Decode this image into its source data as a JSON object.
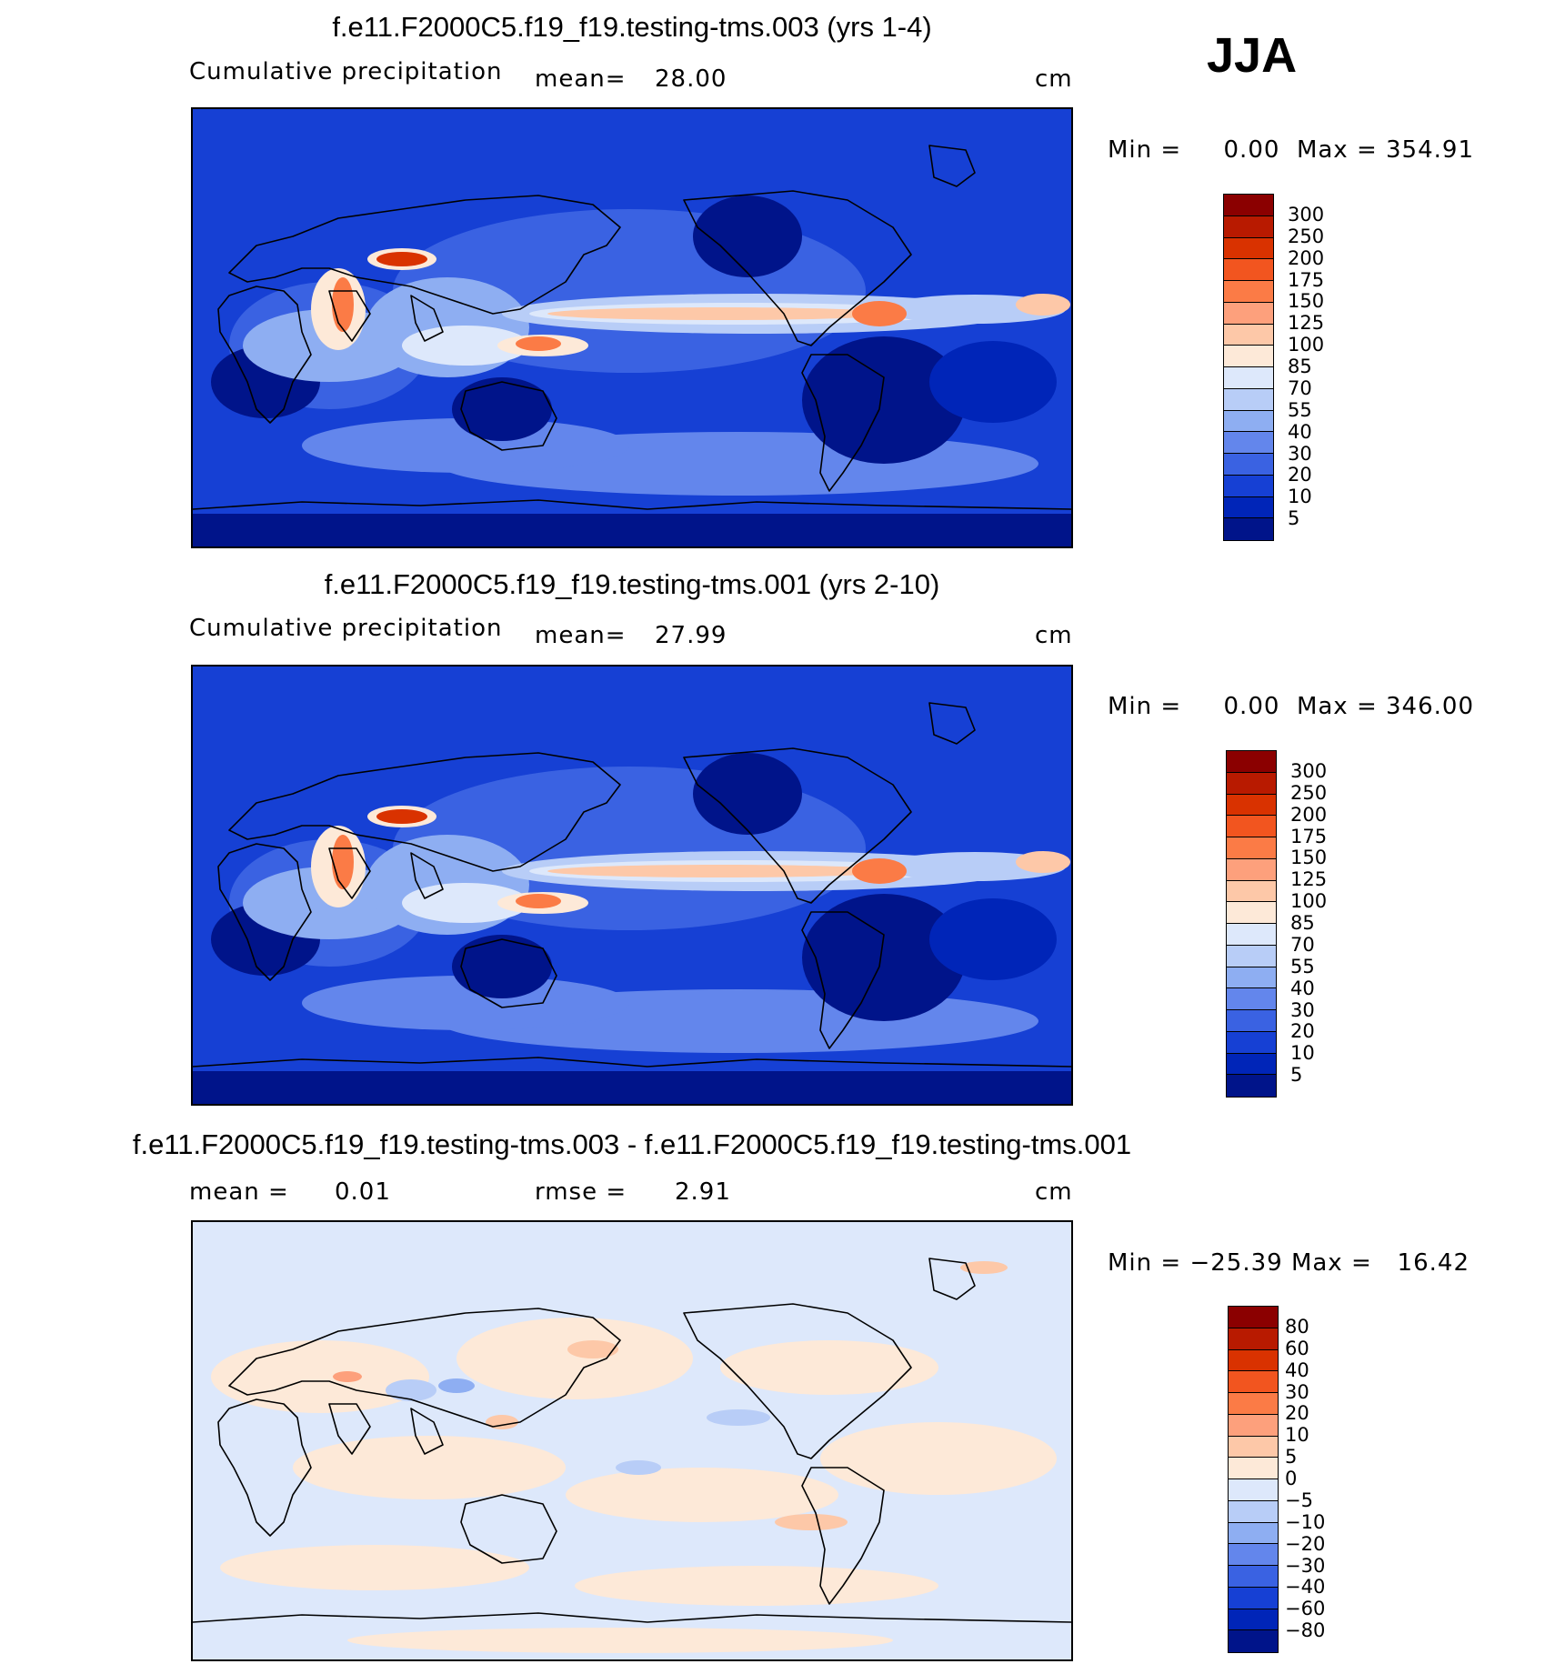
{
  "season": "JJA",
  "panels": [
    {
      "title": "f.e11.F2000C5.f19_f19.testing-tms.003 (yrs 1-4)",
      "left_label": "Cumulative precipitation",
      "stat_label": "mean=",
      "stat_value": "28.00",
      "units": "cm",
      "min_label": "Min =",
      "min_value": "0.00",
      "max_label": "Max =",
      "max_value": "354.91",
      "colorbar": {
        "labels": [
          "300",
          "250",
          "200",
          "175",
          "150",
          "125",
          "100",
          "85",
          "70",
          "55",
          "40",
          "30",
          "20",
          "10",
          "5"
        ],
        "colors": [
          "#8b0000",
          "#b81a00",
          "#d93200",
          "#f2551f",
          "#fb7b46",
          "#fda07c",
          "#fdc8a8",
          "#fde9d8",
          "#dde8fb",
          "#b8cdf7",
          "#8eaef2",
          "#6386ec",
          "#3a62e2",
          "#1640d4",
          "#0025b8",
          "#00148a"
        ]
      },
      "field_colors": {
        "deep": "#00148a",
        "dry": "#0025b8",
        "low": "#1640d4",
        "mid": "#3a62e2",
        "mod": "#6386ec",
        "wet": "#8eaef2",
        "wetter": "#b8cdf7",
        "pale": "#dde8fb",
        "cream": "#fde9d8",
        "peach": "#fdc8a8",
        "orange": "#fb7b46",
        "red": "#d93200"
      }
    },
    {
      "title": "f.e11.F2000C5.f19_f19.testing-tms.001 (yrs 2-10)",
      "left_label": "Cumulative precipitation",
      "stat_label": "mean=",
      "stat_value": "27.99",
      "units": "cm",
      "min_label": "Min =",
      "min_value": "0.00",
      "max_label": "Max =",
      "max_value": "346.00",
      "colorbar": {
        "labels": [
          "300",
          "250",
          "200",
          "175",
          "150",
          "125",
          "100",
          "85",
          "70",
          "55",
          "40",
          "30",
          "20",
          "10",
          "5"
        ],
        "colors": [
          "#8b0000",
          "#b81a00",
          "#d93200",
          "#f2551f",
          "#fb7b46",
          "#fda07c",
          "#fdc8a8",
          "#fde9d8",
          "#dde8fb",
          "#b8cdf7",
          "#8eaef2",
          "#6386ec",
          "#3a62e2",
          "#1640d4",
          "#0025b8",
          "#00148a"
        ]
      },
      "field_colors": {
        "deep": "#00148a",
        "dry": "#0025b8",
        "low": "#1640d4",
        "mid": "#3a62e2",
        "mod": "#6386ec",
        "wet": "#8eaef2",
        "wetter": "#b8cdf7",
        "pale": "#dde8fb",
        "cream": "#fde9d8",
        "peach": "#fdc8a8",
        "orange": "#fb7b46",
        "red": "#d93200"
      }
    },
    {
      "title": "f.e11.F2000C5.f19_f19.testing-tms.003 - f.e11.F2000C5.f19_f19.testing-tms.001",
      "left_label": "mean =",
      "left_value": "0.01",
      "stat_label": "rmse =",
      "stat_value": "2.91",
      "units": "cm",
      "min_label": "Min =",
      "min_value": "−25.39",
      "max_label": "Max =",
      "max_value": "16.42",
      "colorbar": {
        "labels": [
          "80",
          "60",
          "40",
          "30",
          "20",
          "10",
          "5",
          "0",
          "−5",
          "−10",
          "−20",
          "−30",
          "−40",
          "−60",
          "−80"
        ],
        "colors": [
          "#8b0000",
          "#b81a00",
          "#d93200",
          "#f2551f",
          "#fb7b46",
          "#fda07c",
          "#fdc8a8",
          "#fde9d8",
          "#dde8fb",
          "#b8cdf7",
          "#8eaef2",
          "#6386ec",
          "#3a62e2",
          "#1640d4",
          "#0025b8",
          "#00148a"
        ]
      },
      "field_colors": {
        "neg": "#dde8fb",
        "pos": "#fde9d8",
        "neg2": "#b8cdf7",
        "pos2": "#fdc8a8",
        "neg3": "#8eaef2",
        "pos3": "#fda07c"
      }
    }
  ]
}
